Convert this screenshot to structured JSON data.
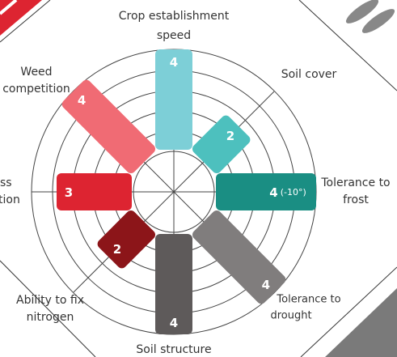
{
  "chart_data": {
    "type": "radial_bar",
    "categories": [
      [
        "Crop establishment",
        "speed"
      ],
      [
        "Soil cover"
      ],
      [
        "Tolerance to",
        "frost"
      ],
      [
        "Tolerance to",
        "drought"
      ],
      [
        "Soil structure"
      ],
      [
        "Ability to fix",
        "nitrogen"
      ],
      [
        "ss",
        "tion"
      ],
      [
        "Weed",
        "competition"
      ]
    ],
    "values": [
      4,
      2,
      4,
      4,
      4,
      2,
      3,
      4
    ],
    "colors": [
      "#7dcfd7",
      "#4dc0be",
      "#1a8e83",
      "#807d7d",
      "#5e5a5a",
      "#8c1519",
      "#dd2431",
      "#f06b74"
    ],
    "value_notes": [
      null,
      null,
      "(-10°)",
      null,
      null,
      null,
      null,
      null
    ],
    "rlim": [
      0,
      4
    ]
  }
}
